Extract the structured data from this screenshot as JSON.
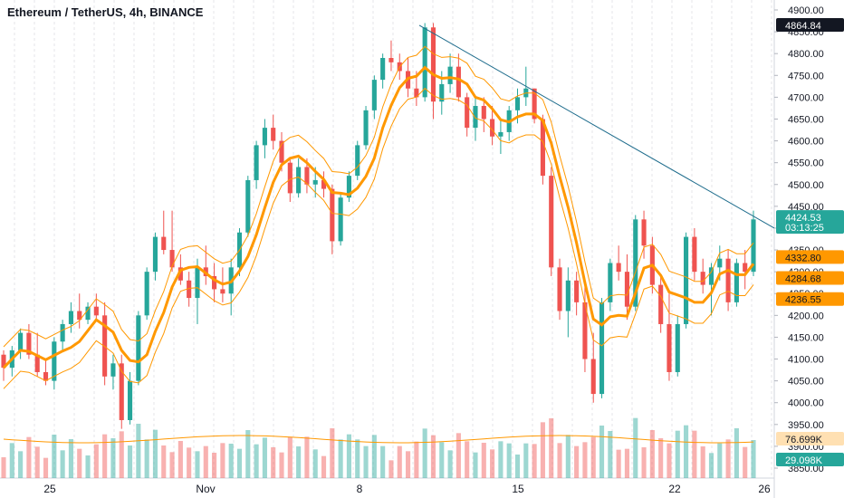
{
  "chart_data": {
    "type": "candlestick",
    "title": "Ethereum / TetherUS, 4h, BINANCE",
    "y_axis": {
      "ylim": [
        3850,
        4925
      ],
      "ticks": [
        "4900.00",
        "4850.00",
        "4800.00",
        "4750.00",
        "4700.00",
        "4650.00",
        "4600.00",
        "4550.00",
        "4500.00",
        "4450.00",
        "4400.00",
        "4350.00",
        "4300.00",
        "4250.00",
        "4200.00",
        "4150.00",
        "4100.00",
        "4050.00",
        "4000.00",
        "3950.00",
        "3900.00",
        "3850.00"
      ]
    },
    "x_axis": {
      "ticks": [
        "25",
        "Nov",
        "8",
        "15",
        "22",
        "26"
      ]
    },
    "price_labels": {
      "high": "4864.84",
      "last": "4424.53",
      "countdown": "03:13:25",
      "band_upper": "4332.80",
      "band_mid": "4284.68",
      "band_lower": "4236.55",
      "volume_ma": "76.699K",
      "volume": "29.098K"
    },
    "colors": {
      "up": "#26a69a",
      "down": "#ef5350",
      "band": "#ff9800",
      "trendline": "#1e6c8c",
      "high_label": "#131722"
    },
    "candles": [
      [
        4110,
        4120,
        4050,
        4080
      ],
      [
        4080,
        4130,
        4060,
        4120
      ],
      [
        4120,
        4170,
        4100,
        4160
      ],
      [
        4160,
        4180,
        4100,
        4110
      ],
      [
        4110,
        4160,
        4060,
        4070
      ],
      [
        4070,
        4100,
        4040,
        4050
      ],
      [
        4050,
        4150,
        4030,
        4140
      ],
      [
        4140,
        4190,
        4120,
        4180
      ],
      [
        4180,
        4230,
        4160,
        4210
      ],
      [
        4210,
        4250,
        4170,
        4190
      ],
      [
        4190,
        4230,
        4180,
        4220
      ],
      [
        4220,
        4250,
        4190,
        4200
      ],
      [
        4200,
        4230,
        4040,
        4060
      ],
      [
        4060,
        4110,
        4030,
        4090
      ],
      [
        4090,
        4110,
        3940,
        3960
      ],
      [
        3960,
        4070,
        3950,
        4050
      ],
      [
        4050,
        4210,
        4040,
        4200
      ],
      [
        4200,
        4310,
        4190,
        4300
      ],
      [
        4300,
        4390,
        4280,
        4380
      ],
      [
        4380,
        4440,
        4340,
        4350
      ],
      [
        4350,
        4440,
        4300,
        4310
      ],
      [
        4310,
        4340,
        4270,
        4280
      ],
      [
        4280,
        4300,
        4220,
        4240
      ],
      [
        4240,
        4330,
        4180,
        4310
      ],
      [
        4310,
        4360,
        4270,
        4290
      ],
      [
        4290,
        4320,
        4230,
        4260
      ],
      [
        4260,
        4310,
        4230,
        4250
      ],
      [
        4250,
        4330,
        4200,
        4310
      ],
      [
        4310,
        4400,
        4290,
        4390
      ],
      [
        4390,
        4520,
        4380,
        4510
      ],
      [
        4510,
        4600,
        4490,
        4590
      ],
      [
        4590,
        4650,
        4560,
        4630
      ],
      [
        4630,
        4660,
        4580,
        4600
      ],
      [
        4600,
        4620,
        4530,
        4550
      ],
      [
        4550,
        4560,
        4460,
        4480
      ],
      [
        4480,
        4560,
        4470,
        4540
      ],
      [
        4540,
        4560,
        4480,
        4500
      ],
      [
        4500,
        4540,
        4470,
        4510
      ],
      [
        4510,
        4530,
        4470,
        4490
      ],
      [
        4490,
        4500,
        4340,
        4370
      ],
      [
        4370,
        4480,
        4360,
        4470
      ],
      [
        4470,
        4530,
        4460,
        4520
      ],
      [
        4520,
        4600,
        4510,
        4590
      ],
      [
        4590,
        4680,
        4580,
        4670
      ],
      [
        4670,
        4750,
        4650,
        4740
      ],
      [
        4740,
        4800,
        4720,
        4790
      ],
      [
        4790,
        4830,
        4760,
        4780
      ],
      [
        4780,
        4800,
        4740,
        4760
      ],
      [
        4760,
        4790,
        4700,
        4720
      ],
      [
        4720,
        4760,
        4680,
        4700
      ],
      [
        4700,
        4870,
        4690,
        4860
      ],
      [
        4860,
        4870,
        4650,
        4690
      ],
      [
        4690,
        4760,
        4660,
        4730
      ],
      [
        4730,
        4800,
        4710,
        4770
      ],
      [
        4770,
        4800,
        4690,
        4700
      ],
      [
        4700,
        4710,
        4610,
        4630
      ],
      [
        4630,
        4700,
        4600,
        4680
      ],
      [
        4680,
        4700,
        4620,
        4650
      ],
      [
        4650,
        4680,
        4590,
        4610
      ],
      [
        4610,
        4650,
        4570,
        4620
      ],
      [
        4620,
        4680,
        4600,
        4670
      ],
      [
        4670,
        4720,
        4640,
        4700
      ],
      [
        4700,
        4770,
        4680,
        4720
      ],
      [
        4720,
        4720,
        4640,
        4650
      ],
      [
        4650,
        4660,
        4500,
        4520
      ],
      [
        4520,
        4540,
        4290,
        4310
      ],
      [
        4310,
        4330,
        4190,
        4210
      ],
      [
        4210,
        4310,
        4150,
        4280
      ],
      [
        4280,
        4300,
        4200,
        4230
      ],
      [
        4230,
        4270,
        4070,
        4100
      ],
      [
        4100,
        4160,
        4000,
        4020
      ],
      [
        4020,
        4240,
        4010,
        4230
      ],
      [
        4230,
        4330,
        4210,
        4320
      ],
      [
        4320,
        4360,
        4280,
        4300
      ],
      [
        4300,
        4340,
        4190,
        4220
      ],
      [
        4220,
        4430,
        4210,
        4420
      ],
      [
        4420,
        4440,
        4330,
        4360
      ],
      [
        4360,
        4380,
        4250,
        4270
      ],
      [
        4270,
        4290,
        4160,
        4180
      ],
      [
        4180,
        4250,
        4050,
        4070
      ],
      [
        4070,
        4200,
        4060,
        4180
      ],
      [
        4180,
        4390,
        4170,
        4380
      ],
      [
        4380,
        4400,
        4280,
        4300
      ],
      [
        4300,
        4330,
        4250,
        4270
      ],
      [
        4270,
        4320,
        4200,
        4310
      ],
      [
        4310,
        4360,
        4280,
        4330
      ],
      [
        4330,
        4350,
        4210,
        4230
      ],
      [
        4230,
        4330,
        4220,
        4320
      ],
      [
        4320,
        4350,
        4260,
        4300
      ],
      [
        4300,
        4440,
        4290,
        4420
      ]
    ]
  }
}
